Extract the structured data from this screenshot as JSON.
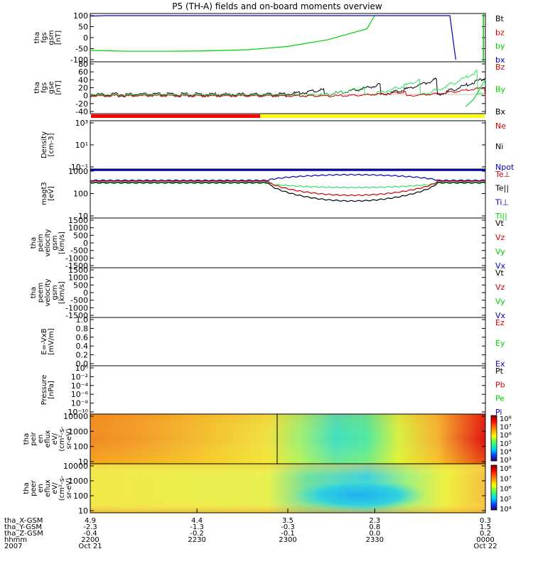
{
  "title": "P5 (TH-A) fields and on-board moments overview",
  "colors": {
    "red": "#d00000",
    "green": "#00d000",
    "lightgreen": "#30e060",
    "blue": "#0000c0",
    "black": "#000000",
    "yellow": "#f0f000"
  },
  "chart_data": [
    {
      "type": "line",
      "id": "fgs_gsm",
      "ylabel": [
        "tha",
        "fgs",
        "gsm",
        "[nT]"
      ],
      "yticks": [
        "100",
        "50",
        "0",
        "-50",
        "-100"
      ],
      "ylim": [
        -100,
        100
      ],
      "legend": [
        {
          "label": "Bt",
          "color": "#000000"
        },
        {
          "label": "bz",
          "color": "#d00000"
        },
        {
          "label": "by",
          "color": "#00d000"
        },
        {
          "label": "bx",
          "color": "#0000c0"
        }
      ],
      "series": [
        {
          "name": "by",
          "color": "#00d000",
          "x": [
            0,
            0.1,
            0.2,
            0.3,
            0.4,
            0.5,
            0.6,
            0.7,
            0.72
          ],
          "values": [
            -58,
            -62,
            -62,
            -60,
            -55,
            -40,
            -10,
            40,
            100
          ]
        },
        {
          "name": "bx",
          "color": "#0000c0",
          "x": [
            0,
            0.04,
            0.91,
            0.925
          ],
          "values": [
            98,
            100,
            100,
            -100
          ]
        }
      ]
    },
    {
      "type": "line",
      "id": "fgs_gse",
      "ylabel": [
        "tha",
        "fgs",
        "gse",
        "[nT]"
      ],
      "yticks": [
        "80",
        "60",
        "40",
        "20",
        "0",
        "-20",
        "-40"
      ],
      "ylim": [
        -50,
        80
      ],
      "legend": [
        {
          "label": "Bz",
          "color": "#d00000"
        },
        {
          "label": "By",
          "color": "#00d000"
        },
        {
          "label": "Bx",
          "color": "#000000"
        }
      ]
    },
    {
      "type": "line",
      "id": "density",
      "ylabel": [
        "Density",
        "[cm-3]"
      ],
      "yticks": [
        "10³",
        "10¹",
        "10⁻¹"
      ],
      "legend": [
        {
          "label": "Ne",
          "color": "#d00000"
        },
        {
          "label": "Ni",
          "color": "#000000"
        },
        {
          "label": "Npot",
          "color": "#0000c0"
        }
      ]
    },
    {
      "type": "line",
      "id": "temperature",
      "ylabel": [
        "magt3",
        "[eV]"
      ],
      "yticks": [
        "1000",
        "100",
        "10"
      ],
      "ylim": [
        10,
        1000
      ],
      "legend": [
        {
          "label": "Te⊥",
          "color": "#d00000"
        },
        {
          "label": "Te||",
          "color": "#000000"
        },
        {
          "label": "Ti⊥",
          "color": "#0000c0"
        },
        {
          "label": "Ti||",
          "color": "#00d000"
        }
      ]
    },
    {
      "type": "line",
      "id": "peim_velocity",
      "ylabel": [
        "tha",
        "peim",
        "velocity",
        "gsm",
        "[km/s]"
      ],
      "yticks": [
        "1500",
        "1000",
        "500",
        "0",
        "-500",
        "-1000",
        "-1500"
      ],
      "legend": [
        {
          "label": "Vt",
          "color": "#000000"
        },
        {
          "label": "Vz",
          "color": "#d00000"
        },
        {
          "label": "Vy",
          "color": "#00d000"
        },
        {
          "label": "Vx",
          "color": "#0000c0"
        }
      ]
    },
    {
      "type": "line",
      "id": "peem_velocity",
      "ylabel": [
        "tha",
        "peem",
        "velocity",
        "gsm",
        "[km/s]"
      ],
      "yticks": [
        "1500",
        "1000",
        "500",
        "0",
        "-500",
        "-1000",
        "-1500"
      ],
      "legend": [
        {
          "label": "Vt",
          "color": "#000000"
        },
        {
          "label": "Vz",
          "color": "#d00000"
        },
        {
          "label": "Vy",
          "color": "#00d000"
        },
        {
          "label": "Vx",
          "color": "#0000c0"
        }
      ]
    },
    {
      "type": "line",
      "id": "efield",
      "ylabel": [
        "E=-VxB",
        "[mV/m]"
      ],
      "yticks": [
        "1.0",
        "0.8",
        "0.6",
        "0.4",
        "0.2",
        "0.0"
      ],
      "legend": [
        {
          "label": "Ez",
          "color": "#d00000"
        },
        {
          "label": "Ey",
          "color": "#00d000"
        },
        {
          "label": "Ex",
          "color": "#0000c0"
        }
      ]
    },
    {
      "type": "line",
      "id": "pressure",
      "ylabel": [
        "Pressure",
        "[nPa]"
      ],
      "yticks": [
        "10⁰",
        "10⁻²",
        "10⁻⁴",
        "10⁻⁶",
        "10⁻⁸",
        "10⁻¹⁰"
      ],
      "legend": [
        {
          "label": "Pt",
          "color": "#000000"
        },
        {
          "label": "Pb",
          "color": "#d00000"
        },
        {
          "label": "Pe",
          "color": "#00d000"
        },
        {
          "label": "Pi",
          "color": "#0000c0"
        }
      ]
    },
    {
      "type": "heatmap",
      "id": "peir_eflux",
      "ylabel": [
        "tha",
        "peir",
        "en",
        "eflux",
        "eV/",
        "(cm²-s-",
        "sr-eV)"
      ],
      "yticks": [
        "10000",
        "1000",
        "100",
        "10"
      ],
      "colorbar": [
        "10⁸",
        "10⁷",
        "10⁶",
        "10⁵",
        "10⁴",
        "10³"
      ]
    },
    {
      "type": "heatmap",
      "id": "peer_eflux",
      "ylabel": [
        "tha",
        "peer",
        "en",
        "eflux",
        "eV/",
        "(cm²-s-",
        "sr-eV)"
      ],
      "yticks": [
        "10000",
        "1000",
        "100",
        "10"
      ],
      "colorbar": [
        "10⁸",
        "10⁷",
        "10⁶",
        "10⁵",
        "10⁴"
      ]
    }
  ],
  "xaxis": {
    "rows": [
      {
        "label": "tha_X-GSM",
        "values": [
          "4.9",
          "4.4",
          "3.5",
          "2.3",
          "0.3"
        ]
      },
      {
        "label": "tha_Y-GSM",
        "values": [
          "-2.3",
          "-1.3",
          "-0.3",
          "0.8",
          "1.5"
        ]
      },
      {
        "label": "tha_Z-GSM",
        "values": [
          "-0.4",
          "-0.2",
          "-0.1",
          "0.0",
          "0.2"
        ]
      },
      {
        "label": "hhmm",
        "values": [
          "2200",
          "2230",
          "2300",
          "2330",
          "0000"
        ]
      },
      {
        "label": "2007",
        "values": [
          "Oct 21",
          "",
          "",
          "",
          "Oct 22"
        ]
      }
    ]
  }
}
